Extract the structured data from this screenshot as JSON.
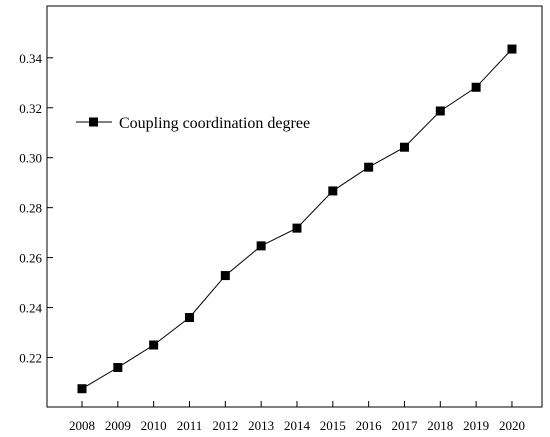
{
  "chart_data": {
    "type": "line",
    "title": "",
    "xlabel": "",
    "ylabel": "",
    "categories": [
      "2008",
      "2009",
      "2010",
      "2011",
      "2012",
      "2013",
      "2014",
      "2015",
      "2016",
      "2017",
      "2018",
      "2019",
      "2020"
    ],
    "series": [
      {
        "name": "Coupling coordination degree",
        "values": [
          0.2075,
          0.216,
          0.225,
          0.236,
          0.2528,
          0.2647,
          0.2718,
          0.2867,
          0.2962,
          0.3042,
          0.3187,
          0.3282,
          0.3435
        ],
        "marker": "square",
        "color": "#000000"
      }
    ],
    "ylim": [
      0.2,
      0.35
    ],
    "yticks": [
      "0.22",
      "0.24",
      "0.26",
      "0.28",
      "0.30",
      "0.32",
      "0.34"
    ],
    "grid": false,
    "legend": "upper-left"
  }
}
